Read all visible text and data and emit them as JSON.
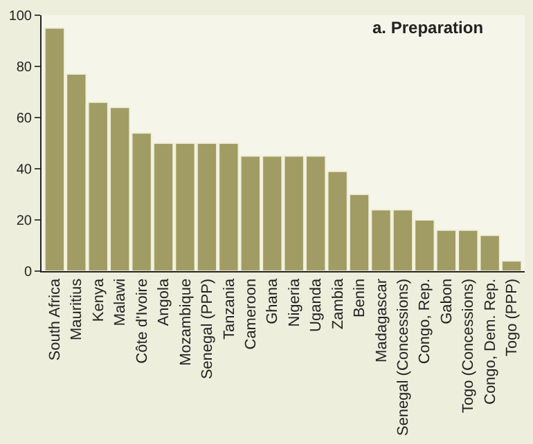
{
  "chart_data": {
    "type": "bar",
    "title": "a. Preparation",
    "categories": [
      "South Africa",
      "Mauritius",
      "Kenya",
      "Malawi",
      "Côte d'Ivoire",
      "Angola",
      "Mozambique",
      "Senegal (PPP)",
      "Tanzania",
      "Cameroon",
      "Ghana",
      "Nigeria",
      "Uganda",
      "Zambia",
      "Benin",
      "Madagascar",
      "Senegal (Concessions)",
      "Congo, Rep.",
      "Gabon",
      "Togo (Concessions)",
      "Congo, Dem. Rep.",
      "Togo (PPP)"
    ],
    "values": [
      95,
      77,
      66,
      64,
      54,
      50,
      50,
      50,
      50,
      45,
      45,
      45,
      45,
      39,
      30,
      24,
      24,
      20,
      16,
      16,
      14,
      4
    ],
    "color": "#a09c64",
    "ylim": [
      0,
      100
    ],
    "yticks": [
      0,
      20,
      40,
      60,
      80,
      100
    ],
    "grid": false
  }
}
